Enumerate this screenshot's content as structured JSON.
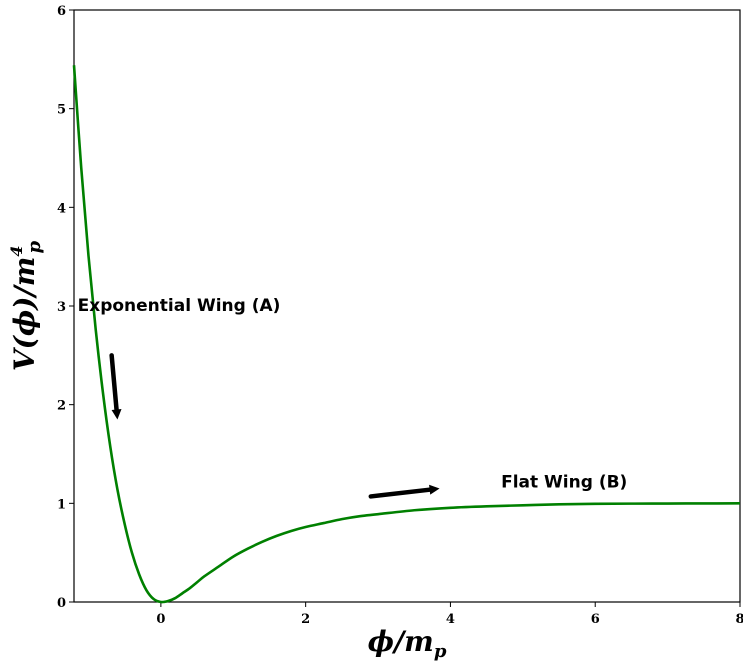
{
  "chart_data": {
    "type": "line",
    "title": "",
    "xlabel": "ϕ/m",
    "xlabel_sub": "p",
    "ylabel": "V(ϕ)/m",
    "ylabel_sub": "p",
    "ylabel_sup": "4",
    "xlim": [
      -1.2,
      8
    ],
    "ylim": [
      0,
      6
    ],
    "x_ticks": [
      0,
      2,
      4,
      6,
      8
    ],
    "y_ticks": [
      0,
      1,
      2,
      3,
      4,
      5,
      6
    ],
    "grid": false,
    "legend": "none",
    "series": [
      {
        "color": "#008000",
        "x": [
          -1.2,
          -1.1,
          -1.0,
          -0.9,
          -0.8,
          -0.7,
          -0.6,
          -0.5,
          -0.4,
          -0.3,
          -0.2,
          -0.1,
          0.0,
          0.1,
          0.2,
          0.3,
          0.4,
          0.5,
          0.6,
          0.8,
          1.0,
          1.2,
          1.4,
          1.6,
          1.8,
          2.0,
          2.25,
          2.5,
          2.75,
          3.0,
          3.5,
          4.0,
          4.5,
          5.0,
          5.5,
          6.0,
          6.5,
          7.0,
          7.5,
          8.0
        ],
        "y": [
          5.44,
          4.4,
          3.51,
          2.76,
          2.12,
          1.58,
          1.14,
          0.79,
          0.5,
          0.28,
          0.12,
          0.03,
          0.0,
          0.01,
          0.04,
          0.09,
          0.14,
          0.2,
          0.26,
          0.36,
          0.46,
          0.54,
          0.61,
          0.67,
          0.72,
          0.76,
          0.8,
          0.84,
          0.87,
          0.89,
          0.93,
          0.955,
          0.97,
          0.98,
          0.99,
          0.995,
          0.997,
          0.998,
          0.999,
          1.0
        ]
      }
    ],
    "annotations": [
      {
        "text": "Exponential Wing (A)",
        "x": -1.15,
        "y": 2.95,
        "arrow_from": [
          -0.68,
          2.5
        ],
        "arrow_to": [
          -0.6,
          1.85
        ]
      },
      {
        "text": "Flat Wing (B)",
        "x": 4.7,
        "y": 1.16,
        "arrow_from": [
          2.9,
          1.07
        ],
        "arrow_to": [
          3.85,
          1.15
        ]
      }
    ]
  }
}
